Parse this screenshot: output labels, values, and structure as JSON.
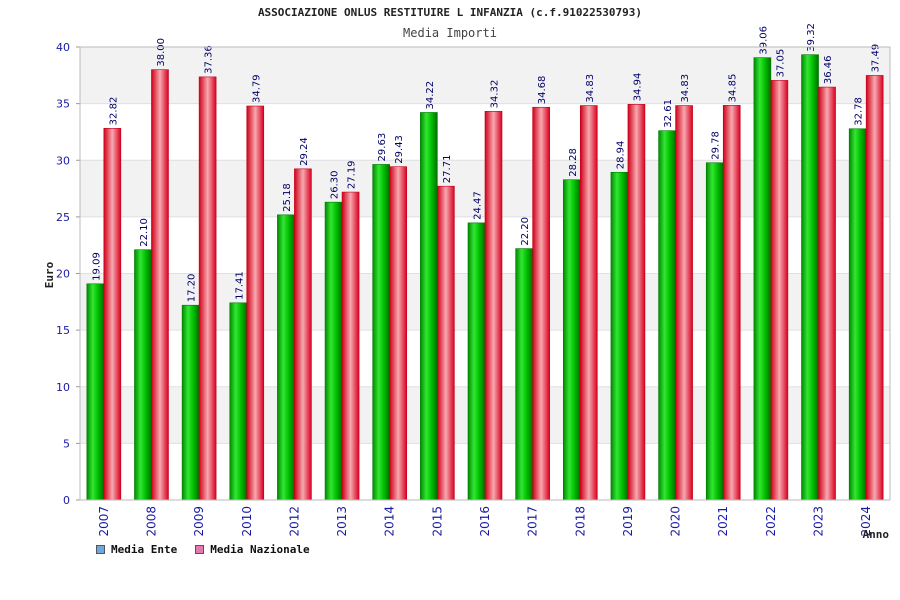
{
  "chart_data": {
    "type": "bar",
    "title": "ASSOCIAZIONE ONLUS RESTITUIRE L INFANZIA (c.f.91022530793)",
    "subtitle": "Media Importi",
    "xlabel": "Anno",
    "ylabel": "Euro",
    "ylim": [
      0,
      40
    ],
    "yticks": [
      "0",
      "5",
      "10",
      "15",
      "20",
      "25",
      "30",
      "35",
      "40"
    ],
    "grid": true,
    "legend_position": "bottom-left",
    "categories": [
      "2007",
      "2008",
      "2009",
      "2010",
      "2012",
      "2013",
      "2014",
      "2015",
      "2016",
      "2017",
      "2018",
      "2019",
      "2020",
      "2021",
      "2022",
      "2023",
      "2024"
    ],
    "series": [
      {
        "name": "Media Ente",
        "color": "#00b400",
        "legend_color": "#6fa8e0",
        "values": [
          19.09,
          22.1,
          17.2,
          17.41,
          25.18,
          26.3,
          29.63,
          34.22,
          24.47,
          22.2,
          28.28,
          28.94,
          32.61,
          29.78,
          39.06,
          39.32,
          32.78
        ],
        "labels": [
          "19.09",
          "22.10",
          "17.20",
          "17.41",
          "25.18",
          "26.30",
          "29.63",
          "34.22",
          "24.47",
          "22.20",
          "28.28",
          "28.94",
          "32.61",
          "29.78",
          "39.06",
          "39.32",
          "32.78"
        ]
      },
      {
        "name": "Media Nazionale",
        "color": "#ee1c2e",
        "legend_color": "#e27ab0",
        "values": [
          32.82,
          38.0,
          37.36,
          34.79,
          29.24,
          27.19,
          29.43,
          27.71,
          34.32,
          34.68,
          34.83,
          34.94,
          34.83,
          34.85,
          37.05,
          36.46,
          37.49
        ],
        "labels": [
          "32.82",
          "38.00",
          "37.36",
          "34.79",
          "29.24",
          "27.19",
          "29.43",
          "27.71",
          "34.32",
          "34.68",
          "34.83",
          "34.94",
          "34.83",
          "34.85",
          "37.05",
          "36.46",
          "37.49"
        ]
      }
    ]
  }
}
